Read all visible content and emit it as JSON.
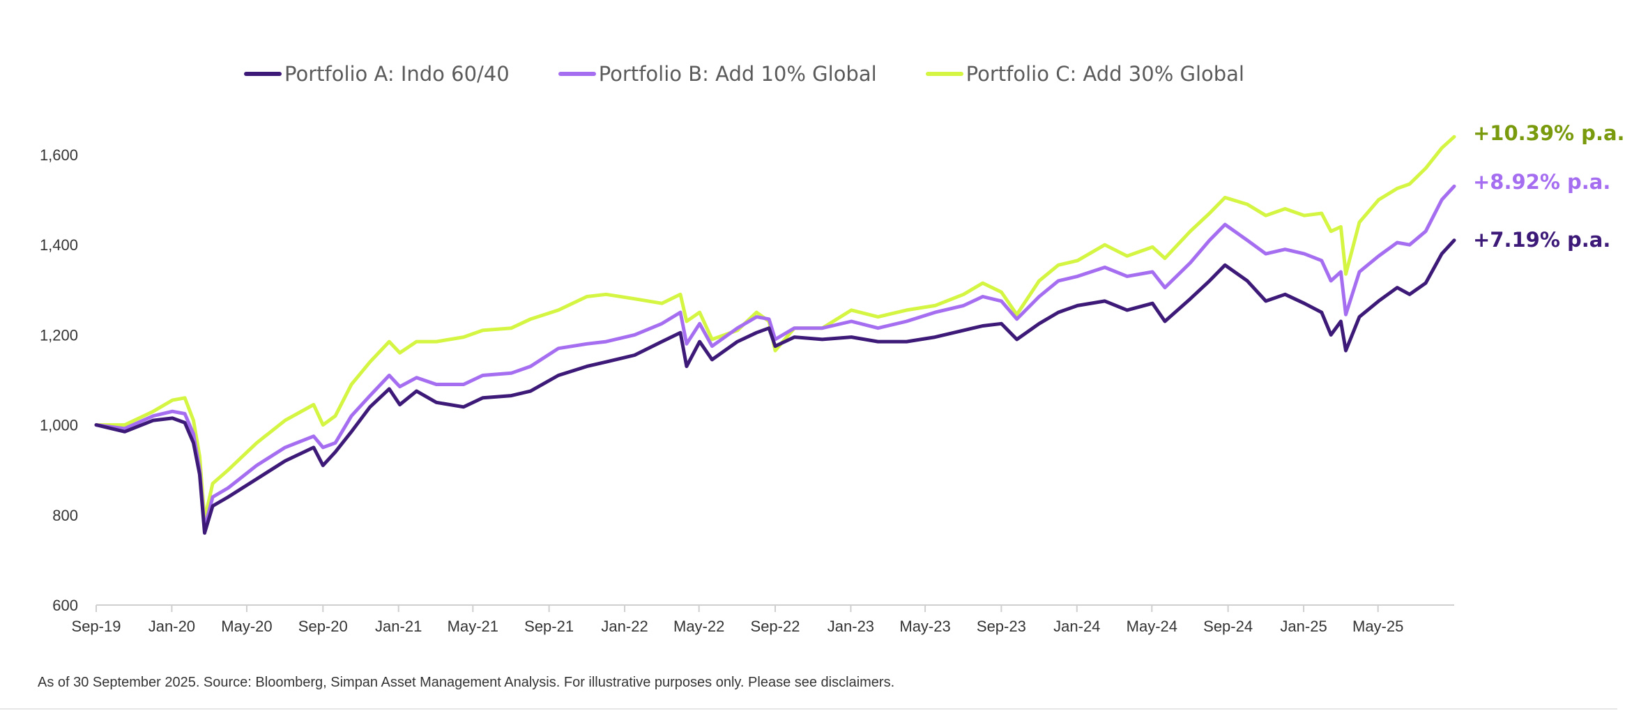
{
  "chart_data": {
    "type": "line",
    "title": "",
    "xlabel": "",
    "ylabel": "",
    "ylim": [
      600,
      1650
    ],
    "xlim": [
      "2019-09-30",
      "2025-09-30"
    ],
    "y_ticks": [
      "600",
      "800",
      "1,000",
      "1,200",
      "1,400",
      "1,600"
    ],
    "x_ticks": [
      "Sep-19",
      "Jan-20",
      "May-20",
      "Sep-20",
      "Jan-21",
      "May-21",
      "Sep-21",
      "Jan-22",
      "May-22",
      "Sep-22",
      "Jan-23",
      "May-23",
      "Sep-23",
      "Jan-24",
      "May-24",
      "Sep-24",
      "Jan-25",
      "May-25"
    ],
    "grid": false,
    "legend_position": "top",
    "series": [
      {
        "name": "Portfolio A: Indo 60/40",
        "color": "#3d1a78",
        "end_label": "+7.19% p.a.",
        "points": [
          [
            "2019-09-30",
            1000
          ],
          [
            "2019-11-15",
            985
          ],
          [
            "2019-12-31",
            1010
          ],
          [
            "2020-01-31",
            1015
          ],
          [
            "2020-02-20",
            1005
          ],
          [
            "2020-03-05",
            960
          ],
          [
            "2020-03-15",
            890
          ],
          [
            "2020-03-23",
            760
          ],
          [
            "2020-04-05",
            820
          ],
          [
            "2020-04-30",
            840
          ],
          [
            "2020-06-15",
            880
          ],
          [
            "2020-07-31",
            920
          ],
          [
            "2020-09-15",
            950
          ],
          [
            "2020-09-30",
            910
          ],
          [
            "2020-10-20",
            940
          ],
          [
            "2020-11-15",
            985
          ],
          [
            "2020-12-15",
            1040
          ],
          [
            "2021-01-15",
            1080
          ],
          [
            "2021-02-01",
            1045
          ],
          [
            "2021-02-28",
            1075
          ],
          [
            "2021-04-01",
            1050
          ],
          [
            "2021-05-15",
            1040
          ],
          [
            "2021-06-15",
            1060
          ],
          [
            "2021-07-31",
            1065
          ],
          [
            "2021-08-31",
            1075
          ],
          [
            "2021-10-15",
            1110
          ],
          [
            "2021-11-30",
            1130
          ],
          [
            "2021-12-31",
            1140
          ],
          [
            "2022-02-15",
            1155
          ],
          [
            "2022-03-31",
            1185
          ],
          [
            "2022-04-30",
            1205
          ],
          [
            "2022-05-10",
            1130
          ],
          [
            "2022-05-31",
            1185
          ],
          [
            "2022-06-20",
            1145
          ],
          [
            "2022-07-31",
            1185
          ],
          [
            "2022-08-31",
            1205
          ],
          [
            "2022-09-20",
            1215
          ],
          [
            "2022-09-30",
            1175
          ],
          [
            "2022-10-31",
            1195
          ],
          [
            "2022-12-15",
            1190
          ],
          [
            "2023-01-31",
            1195
          ],
          [
            "2023-03-15",
            1185
          ],
          [
            "2023-04-30",
            1185
          ],
          [
            "2023-06-15",
            1195
          ],
          [
            "2023-07-31",
            1210
          ],
          [
            "2023-08-31",
            1220
          ],
          [
            "2023-09-30",
            1225
          ],
          [
            "2023-10-25",
            1190
          ],
          [
            "2023-11-30",
            1225
          ],
          [
            "2023-12-31",
            1250
          ],
          [
            "2024-01-31",
            1265
          ],
          [
            "2024-03-15",
            1275
          ],
          [
            "2024-04-20",
            1255
          ],
          [
            "2024-05-31",
            1270
          ],
          [
            "2024-06-20",
            1230
          ],
          [
            "2024-07-31",
            1280
          ],
          [
            "2024-08-31",
            1320
          ],
          [
            "2024-09-25",
            1355
          ],
          [
            "2024-10-31",
            1320
          ],
          [
            "2024-11-30",
            1275
          ],
          [
            "2024-12-31",
            1290
          ],
          [
            "2025-01-31",
            1270
          ],
          [
            "2025-02-28",
            1250
          ],
          [
            "2025-03-15",
            1200
          ],
          [
            "2025-03-31",
            1230
          ],
          [
            "2025-04-08",
            1165
          ],
          [
            "2025-04-30",
            1240
          ],
          [
            "2025-05-31",
            1275
          ],
          [
            "2025-06-30",
            1305
          ],
          [
            "2025-07-20",
            1290
          ],
          [
            "2025-08-15",
            1315
          ],
          [
            "2025-09-10",
            1380
          ],
          [
            "2025-09-30",
            1410
          ]
        ]
      },
      {
        "name": "Portfolio B: Add 10% Global",
        "color": "#a56ef0",
        "end_label": "+8.92% p.a.",
        "points": [
          [
            "2019-09-30",
            1000
          ],
          [
            "2019-11-15",
            992
          ],
          [
            "2019-12-31",
            1020
          ],
          [
            "2020-01-31",
            1030
          ],
          [
            "2020-02-20",
            1025
          ],
          [
            "2020-03-05",
            980
          ],
          [
            "2020-03-15",
            900
          ],
          [
            "2020-03-23",
            770
          ],
          [
            "2020-04-05",
            840
          ],
          [
            "2020-04-30",
            860
          ],
          [
            "2020-06-15",
            910
          ],
          [
            "2020-07-31",
            950
          ],
          [
            "2020-09-15",
            975
          ],
          [
            "2020-09-30",
            950
          ],
          [
            "2020-10-20",
            960
          ],
          [
            "2020-11-15",
            1020
          ],
          [
            "2020-12-15",
            1065
          ],
          [
            "2021-01-15",
            1110
          ],
          [
            "2021-02-01",
            1085
          ],
          [
            "2021-02-28",
            1105
          ],
          [
            "2021-04-01",
            1090
          ],
          [
            "2021-05-15",
            1090
          ],
          [
            "2021-06-15",
            1110
          ],
          [
            "2021-07-31",
            1115
          ],
          [
            "2021-08-31",
            1130
          ],
          [
            "2021-10-15",
            1170
          ],
          [
            "2021-11-30",
            1180
          ],
          [
            "2021-12-31",
            1185
          ],
          [
            "2022-02-15",
            1200
          ],
          [
            "2022-03-31",
            1225
          ],
          [
            "2022-04-30",
            1250
          ],
          [
            "2022-05-10",
            1180
          ],
          [
            "2022-05-31",
            1225
          ],
          [
            "2022-06-20",
            1175
          ],
          [
            "2022-07-31",
            1215
          ],
          [
            "2022-08-31",
            1240
          ],
          [
            "2022-09-20",
            1235
          ],
          [
            "2022-09-30",
            1190
          ],
          [
            "2022-10-31",
            1215
          ],
          [
            "2022-12-15",
            1215
          ],
          [
            "2023-01-31",
            1230
          ],
          [
            "2023-03-15",
            1215
          ],
          [
            "2023-04-30",
            1230
          ],
          [
            "2023-06-15",
            1250
          ],
          [
            "2023-07-31",
            1265
          ],
          [
            "2023-08-31",
            1285
          ],
          [
            "2023-09-30",
            1275
          ],
          [
            "2023-10-25",
            1235
          ],
          [
            "2023-11-30",
            1285
          ],
          [
            "2023-12-31",
            1320
          ],
          [
            "2024-01-31",
            1330
          ],
          [
            "2024-03-15",
            1350
          ],
          [
            "2024-04-20",
            1330
          ],
          [
            "2024-05-31",
            1340
          ],
          [
            "2024-06-20",
            1305
          ],
          [
            "2024-07-31",
            1360
          ],
          [
            "2024-08-31",
            1410
          ],
          [
            "2024-09-25",
            1445
          ],
          [
            "2024-10-31",
            1410
          ],
          [
            "2024-11-30",
            1380
          ],
          [
            "2024-12-31",
            1390
          ],
          [
            "2025-01-31",
            1380
          ],
          [
            "2025-02-28",
            1365
          ],
          [
            "2025-03-15",
            1320
          ],
          [
            "2025-03-31",
            1340
          ],
          [
            "2025-04-08",
            1245
          ],
          [
            "2025-04-30",
            1340
          ],
          [
            "2025-05-31",
            1375
          ],
          [
            "2025-06-30",
            1405
          ],
          [
            "2025-07-20",
            1400
          ],
          [
            "2025-08-15",
            1430
          ],
          [
            "2025-09-10",
            1500
          ],
          [
            "2025-09-30",
            1530
          ]
        ]
      },
      {
        "name": "Portfolio C: Add 30% Global",
        "color": "#d4f542",
        "end_label": "+10.39% p.a.",
        "end_label_color": "#7a9a0e",
        "points": [
          [
            "2019-09-30",
            1000
          ],
          [
            "2019-11-15",
            1000
          ],
          [
            "2019-12-31",
            1030
          ],
          [
            "2020-01-31",
            1055
          ],
          [
            "2020-02-20",
            1060
          ],
          [
            "2020-03-05",
            1010
          ],
          [
            "2020-03-15",
            930
          ],
          [
            "2020-03-23",
            790
          ],
          [
            "2020-04-05",
            870
          ],
          [
            "2020-04-30",
            900
          ],
          [
            "2020-06-15",
            960
          ],
          [
            "2020-07-31",
            1010
          ],
          [
            "2020-09-15",
            1045
          ],
          [
            "2020-09-30",
            1000
          ],
          [
            "2020-10-20",
            1020
          ],
          [
            "2020-11-15",
            1090
          ],
          [
            "2020-12-15",
            1140
          ],
          [
            "2021-01-15",
            1185
          ],
          [
            "2021-02-01",
            1160
          ],
          [
            "2021-02-28",
            1185
          ],
          [
            "2021-04-01",
            1185
          ],
          [
            "2021-05-15",
            1195
          ],
          [
            "2021-06-15",
            1210
          ],
          [
            "2021-07-31",
            1215
          ],
          [
            "2021-08-31",
            1235
          ],
          [
            "2021-10-15",
            1255
          ],
          [
            "2021-11-30",
            1285
          ],
          [
            "2021-12-31",
            1290
          ],
          [
            "2022-02-15",
            1280
          ],
          [
            "2022-03-31",
            1270
          ],
          [
            "2022-04-30",
            1290
          ],
          [
            "2022-05-10",
            1230
          ],
          [
            "2022-05-31",
            1250
          ],
          [
            "2022-06-20",
            1190
          ],
          [
            "2022-07-31",
            1210
          ],
          [
            "2022-08-31",
            1250
          ],
          [
            "2022-09-20",
            1230
          ],
          [
            "2022-09-30",
            1165
          ],
          [
            "2022-10-31",
            1215
          ],
          [
            "2022-12-15",
            1215
          ],
          [
            "2023-01-31",
            1255
          ],
          [
            "2023-03-15",
            1240
          ],
          [
            "2023-04-30",
            1255
          ],
          [
            "2023-06-15",
            1265
          ],
          [
            "2023-07-31",
            1290
          ],
          [
            "2023-08-31",
            1315
          ],
          [
            "2023-09-30",
            1295
          ],
          [
            "2023-10-25",
            1245
          ],
          [
            "2023-11-30",
            1320
          ],
          [
            "2023-12-31",
            1355
          ],
          [
            "2024-01-31",
            1365
          ],
          [
            "2024-03-15",
            1400
          ],
          [
            "2024-04-20",
            1375
          ],
          [
            "2024-05-31",
            1395
          ],
          [
            "2024-06-20",
            1370
          ],
          [
            "2024-07-31",
            1430
          ],
          [
            "2024-08-31",
            1470
          ],
          [
            "2024-09-25",
            1505
          ],
          [
            "2024-10-31",
            1490
          ],
          [
            "2024-11-30",
            1465
          ],
          [
            "2024-12-31",
            1480
          ],
          [
            "2025-01-31",
            1465
          ],
          [
            "2025-02-28",
            1470
          ],
          [
            "2025-03-15",
            1430
          ],
          [
            "2025-03-31",
            1440
          ],
          [
            "2025-04-08",
            1335
          ],
          [
            "2025-04-30",
            1450
          ],
          [
            "2025-05-31",
            1500
          ],
          [
            "2025-06-30",
            1525
          ],
          [
            "2025-07-20",
            1535
          ],
          [
            "2025-08-15",
            1570
          ],
          [
            "2025-09-10",
            1615
          ],
          [
            "2025-09-30",
            1640
          ]
        ]
      }
    ]
  },
  "footnote": "As of 30 September 2025. Source: Bloomberg, Simpan Asset Management Analysis. For illustrative purposes only. Please see disclaimers."
}
